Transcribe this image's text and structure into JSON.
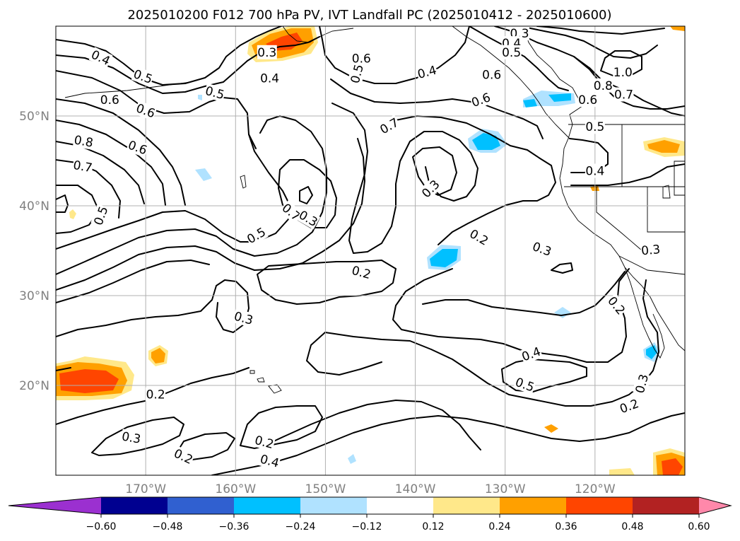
{
  "title": "2025010200 F012 700 hPa PV, IVT Landfall PC (2025010412 - 2025010600)",
  "map": {
    "lon_range": [
      -180,
      -110
    ],
    "lat_range": [
      10,
      60
    ],
    "lon_ticks": [
      {
        "lon": -170,
        "label": "170°W"
      },
      {
        "lon": -160,
        "label": "160°W"
      },
      {
        "lon": -150,
        "label": "150°W"
      },
      {
        "lon": -140,
        "label": "140°W"
      },
      {
        "lon": -130,
        "label": "130°W"
      },
      {
        "lon": -120,
        "label": "120°W"
      }
    ],
    "lat_ticks": [
      {
        "lat": 20,
        "label": "20°N"
      },
      {
        "lat": 30,
        "label": "30°N"
      },
      {
        "lat": 40,
        "label": "40°N"
      },
      {
        "lat": 50,
        "label": "50°N"
      }
    ],
    "grid": true,
    "contour_labels": [
      {
        "text": "0.4",
        "lon": -175,
        "lat": 56.5,
        "angle": 25
      },
      {
        "text": "0.5",
        "lon": -170.3,
        "lat": 54.4,
        "angle": 20
      },
      {
        "text": "0.5",
        "lon": -162.3,
        "lat": 52.6,
        "angle": 15
      },
      {
        "text": "0.6",
        "lon": -174,
        "lat": 51.8,
        "angle": 0
      },
      {
        "text": "0.6",
        "lon": -170,
        "lat": 50.6,
        "angle": 20
      },
      {
        "text": "0.8",
        "lon": -176.9,
        "lat": 47.2,
        "angle": 10
      },
      {
        "text": "0.6",
        "lon": -170.9,
        "lat": 46.5,
        "angle": 20
      },
      {
        "text": "0.7",
        "lon": -177,
        "lat": 44.4,
        "angle": 10
      },
      {
        "text": "0.5",
        "lon": -175,
        "lat": 38.9,
        "angle": -70
      },
      {
        "text": "0.3",
        "lon": -156.5,
        "lat": 57.1,
        "angle": 0
      },
      {
        "text": "0.4",
        "lon": -156.2,
        "lat": 54.2,
        "angle": 0
      },
      {
        "text": "0.6",
        "lon": -146,
        "lat": 56.4,
        "angle": 0
      },
      {
        "text": "0.5",
        "lon": -146.5,
        "lat": 54.7,
        "angle": -75
      },
      {
        "text": "0.4",
        "lon": -138.7,
        "lat": 54.9,
        "angle": -15
      },
      {
        "text": "0.6",
        "lon": -132.7,
        "lat": 51.8,
        "angle": -20
      },
      {
        "text": "0.7",
        "lon": -142.9,
        "lat": 48.9,
        "angle": -30
      },
      {
        "text": "0.3",
        "lon": -128.4,
        "lat": 59.2,
        "angle": 0
      },
      {
        "text": "0.4",
        "lon": -129.3,
        "lat": 58.1,
        "angle": 0
      },
      {
        "text": "0.5",
        "lon": -129.3,
        "lat": 57.1,
        "angle": 0
      },
      {
        "text": "0.6",
        "lon": -131.5,
        "lat": 54.6,
        "angle": 0
      },
      {
        "text": "1.0",
        "lon": -116.9,
        "lat": 54.9,
        "angle": 0
      },
      {
        "text": "0.8",
        "lon": -119.1,
        "lat": 53.4,
        "angle": 0
      },
      {
        "text": "0.7",
        "lon": -116.8,
        "lat": 52.4,
        "angle": 0
      },
      {
        "text": "0.6",
        "lon": -120.8,
        "lat": 51.8,
        "angle": 0
      },
      {
        "text": "0.5",
        "lon": -120,
        "lat": 48.8,
        "angle": 0
      },
      {
        "text": "0.4",
        "lon": -120,
        "lat": 43.9,
        "angle": 0
      },
      {
        "text": "0.7",
        "lon": -153.8,
        "lat": 39.3,
        "angle": 40
      },
      {
        "text": "0.3",
        "lon": -151.9,
        "lat": 38.6,
        "angle": 30
      },
      {
        "text": "0.5",
        "lon": -157.7,
        "lat": 36.7,
        "angle": -30
      },
      {
        "text": "0.3",
        "lon": -138.3,
        "lat": 41.9,
        "angle": -45
      },
      {
        "text": "0.2",
        "lon": -132.9,
        "lat": 36.5,
        "angle": 30
      },
      {
        "text": "0.3",
        "lon": -125.9,
        "lat": 35.2,
        "angle": 20
      },
      {
        "text": "0.2",
        "lon": -146,
        "lat": 32.6,
        "angle": 15
      },
      {
        "text": "0.3",
        "lon": -113.8,
        "lat": 35.1,
        "angle": -5
      },
      {
        "text": "0.3",
        "lon": -159.1,
        "lat": 27.5,
        "angle": 15
      },
      {
        "text": "0.2",
        "lon": -117.6,
        "lat": 28.9,
        "angle": 50
      },
      {
        "text": "0.4",
        "lon": -127.1,
        "lat": 23.5,
        "angle": -20
      },
      {
        "text": "0.5",
        "lon": -127.8,
        "lat": 20.1,
        "angle": 20
      },
      {
        "text": "0.3",
        "lon": -114.8,
        "lat": 20.2,
        "angle": -75
      },
      {
        "text": "0.2",
        "lon": -116.2,
        "lat": 17.7,
        "angle": -20
      },
      {
        "text": "0.2",
        "lon": -168.9,
        "lat": 19,
        "angle": 0
      },
      {
        "text": "0.3",
        "lon": -171.6,
        "lat": 14.2,
        "angle": 10
      },
      {
        "text": "0.2",
        "lon": -165.8,
        "lat": 12.1,
        "angle": 25
      },
      {
        "text": "0.2",
        "lon": -156.8,
        "lat": 13.7,
        "angle": 15
      },
      {
        "text": "0.4",
        "lon": -156.2,
        "lat": 11.6,
        "angle": 15
      }
    ]
  },
  "colorbar": {
    "levels": [
      "−0.60",
      "−0.48",
      "−0.36",
      "−0.24",
      "−0.12",
      "0.12",
      "0.24",
      "0.36",
      "0.48",
      "0.60"
    ],
    "colors": [
      "#9b30d0",
      "#000090",
      "#3060d0",
      "#00c0ff",
      "#b0e2ff",
      "#ffffff",
      "#ffe88a",
      "#ffa000",
      "#ff4500",
      "#b22222",
      "#ff88aa"
    ]
  }
}
